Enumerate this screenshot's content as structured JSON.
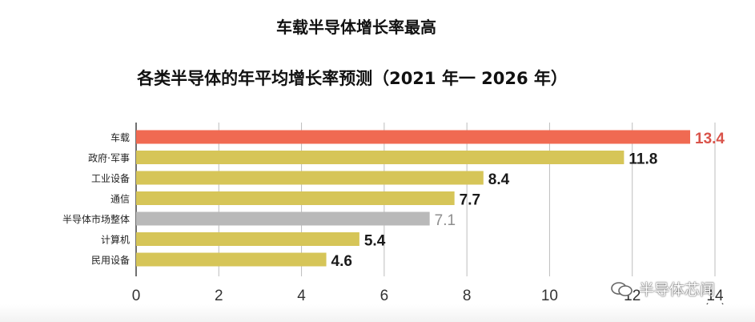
{
  "titles": {
    "main": "车载半导体增长率最高",
    "sub": "各类半导体的年平均增长率预测（2021 年一 2026 年）"
  },
  "chart_data": {
    "type": "bar",
    "orientation": "horizontal",
    "title": "各类半导体的年平均增长率预测（2021 年一 2026 年）",
    "categories": [
      "车载",
      "政府·军事",
      "工业设备",
      "通信",
      "半导体市场整体",
      "计算机",
      "民用设备"
    ],
    "values": [
      13.4,
      11.8,
      8.4,
      7.7,
      7.1,
      5.4,
      4.6
    ],
    "value_labels": [
      "13.4",
      "11.8",
      "8.4",
      "7.7",
      "7.1",
      "5.4",
      "4.6"
    ],
    "bar_colors": [
      "#f06a52",
      "#d6c558",
      "#d6c558",
      "#d6c558",
      "#b9b9b9",
      "#d6c558",
      "#d6c558"
    ],
    "label_colors": [
      "#d9534a",
      "#1a1a1a",
      "#1a1a1a",
      "#1a1a1a",
      "#8e8e8e",
      "#1a1a1a",
      "#1a1a1a"
    ],
    "xticks": [
      "0",
      "2",
      "4",
      "6",
      "8",
      "10",
      "12",
      "14"
    ],
    "xlim": [
      0,
      14
    ],
    "unit_label": "（%）",
    "grid": true
  },
  "watermark": {
    "text": "半导体芯闻",
    "icon": "wechat-icon"
  }
}
